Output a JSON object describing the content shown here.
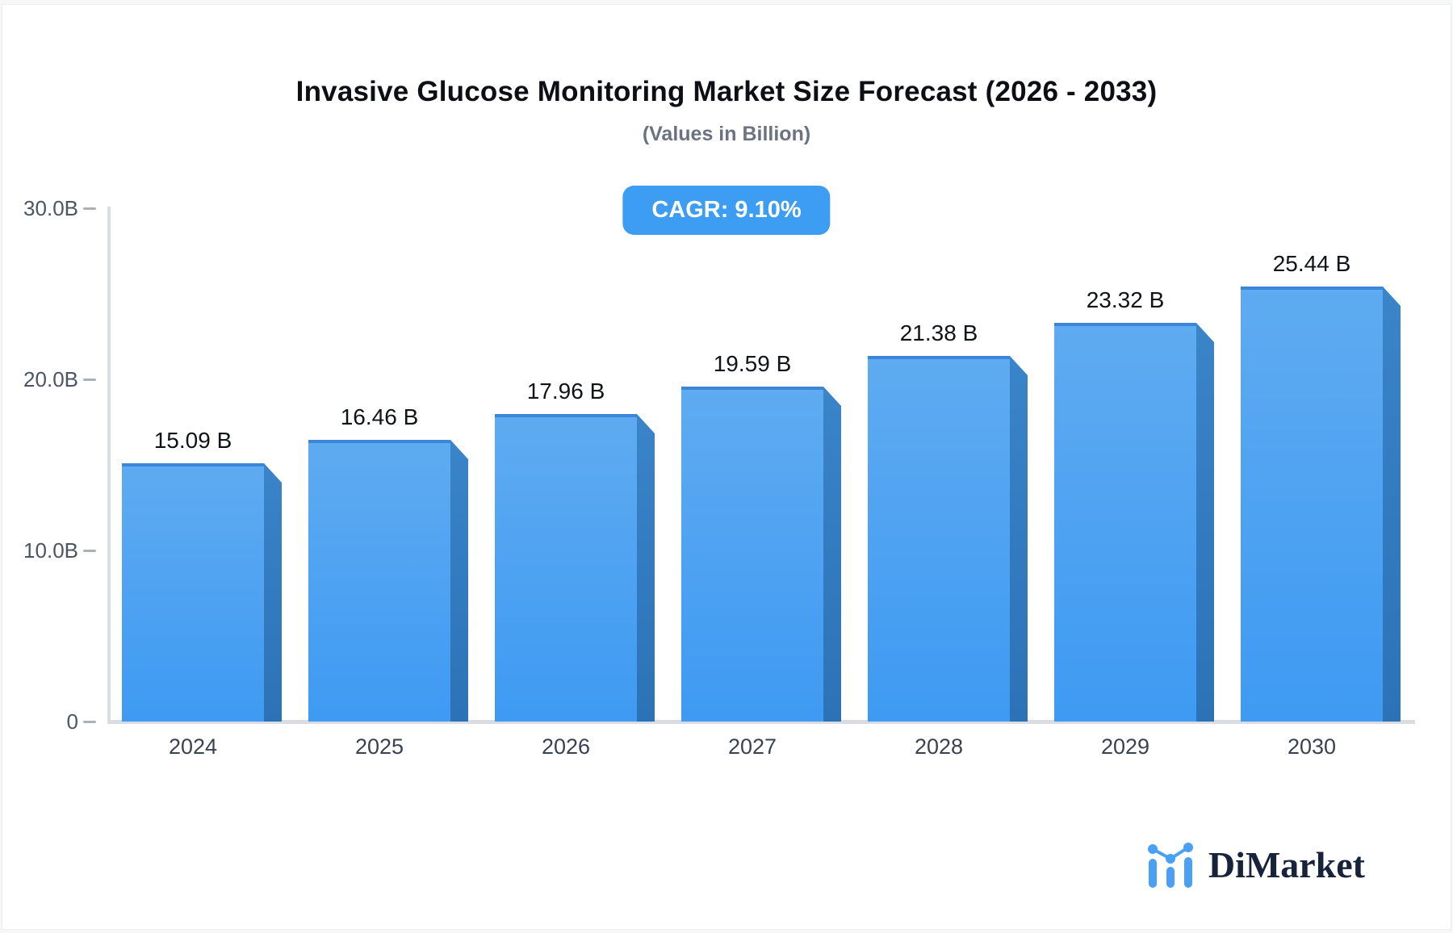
{
  "chart_data": {
    "type": "bar",
    "title": "Invasive Glucose Monitoring Market Size Forecast (2026 - 2033)",
    "subtitle": "(Values in Billion)",
    "annotation_badge": "CAGR: 9.10%",
    "cagr_percent": 9.1,
    "categories": [
      "2024",
      "2025",
      "2026",
      "2027",
      "2028",
      "2029",
      "2030"
    ],
    "values": [
      15.09,
      16.46,
      17.96,
      19.59,
      21.38,
      23.32,
      25.44
    ],
    "value_labels": [
      "15.09 B",
      "16.46 B",
      "17.96 B",
      "19.59 B",
      "21.38 B",
      "23.32 B",
      "25.44 B"
    ],
    "xlabel": "",
    "ylabel": "",
    "ylim": [
      0,
      30
    ],
    "yticks": [
      {
        "value": 30,
        "label": "30.0B"
      },
      {
        "value": 20,
        "label": "20.0B"
      },
      {
        "value": 10,
        "label": "10.0B"
      },
      {
        "value": 0,
        "label": "0"
      }
    ],
    "grid": false,
    "legend": false,
    "bar_style": "3d-extruded"
  },
  "colors": {
    "badge_bg": "#3d9df3",
    "bar_face_top": "#5fabf1",
    "bar_face_bottom": "#3e9af2",
    "bar_top_edge": "#3b86d8",
    "bar_side_top": "#3a84c9",
    "bar_side_bottom": "#2c72b7",
    "axis_line": "#d9dce1",
    "tick_dash": "#a9b0b9",
    "title_text": "#0d0f14",
    "subtitle_text": "#6b7280",
    "logo_navy": "#16233b",
    "logo_blue": "#4aa0f5"
  },
  "branding": {
    "logo_text": "DiMarket",
    "logo_icon": "mini-bar-line-chart-icon"
  }
}
